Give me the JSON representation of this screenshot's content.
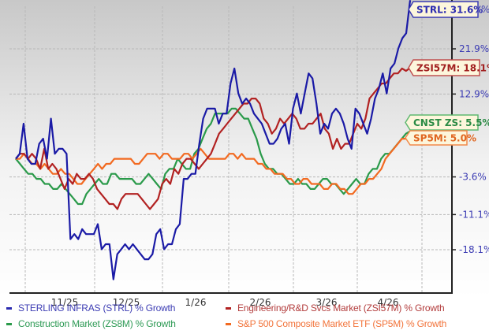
{
  "chart_data": {
    "type": "line",
    "title": "",
    "xlabel": "",
    "ylabel": "% Growth",
    "x_ticks": [
      "11/25",
      "12/25",
      "1/26",
      "2/26",
      "3/26",
      "4/26"
    ],
    "y_ticks": [
      "21.9%",
      "12.9%",
      "-3.6%",
      "-11.1%",
      "-18.1%"
    ],
    "ylim": [
      -24,
      35
    ],
    "grid": true,
    "legend_position": "bottom",
    "series": [
      {
        "name": "STERLING INFRAS (STRL) % Growth",
        "short": "STRL",
        "color": "#1a1aa6",
        "final_label": "STRL: 31.6%",
        "final_value": 31.6,
        "values": [
          0,
          1,
          7,
          0,
          -1,
          -1,
          3,
          4,
          0,
          8,
          1,
          2,
          2,
          1,
          -16,
          -15,
          -16,
          -14,
          -15,
          -15,
          -15,
          -13,
          -18,
          -17,
          -17,
          -24,
          -19,
          -18,
          -17,
          -18,
          -17,
          -18,
          -19,
          -20,
          -20,
          -19,
          -15,
          -14,
          -18,
          -17,
          -17,
          -14,
          -13,
          -4,
          -4,
          -3,
          -3,
          3,
          8,
          10,
          10,
          10,
          7,
          9,
          9,
          15,
          18,
          13,
          11,
          12,
          11,
          9,
          8,
          7,
          5,
          3,
          3,
          4,
          6,
          7,
          3,
          10,
          13,
          9,
          13,
          17,
          16,
          11,
          5,
          7,
          6,
          9,
          10,
          9,
          7,
          4,
          2,
          10,
          9,
          7,
          5,
          8,
          12,
          14,
          17,
          13,
          18,
          19,
          22,
          24,
          25,
          31.6
        ]
      },
      {
        "name": "Engineering/R&D Svcs Market (ZSI57M) % Growth",
        "short": "ZSI57M",
        "color": "#b22222",
        "final_label": "ZSI57M: 18.1%",
        "final_value": 18.1,
        "values": [
          0,
          1,
          1,
          0,
          1,
          0,
          -2,
          2,
          -2,
          -1,
          -2,
          -4,
          -6,
          -4,
          -5,
          -3,
          -4,
          -4,
          -3,
          -4,
          -6,
          -7,
          -8,
          -9,
          -9,
          -10,
          -8,
          -7,
          -7,
          -7,
          -7,
          -8,
          -9,
          -10,
          -9,
          -8,
          -5,
          -4,
          -5,
          -2,
          -3,
          -1,
          0,
          0,
          -1,
          -2,
          -1,
          0,
          1,
          3,
          5,
          6,
          7,
          8,
          9,
          10,
          11,
          11,
          12,
          12,
          11,
          8,
          7,
          5,
          6,
          8,
          7,
          8,
          9,
          8,
          6,
          6,
          7,
          7,
          8,
          9,
          6,
          5,
          2,
          4,
          2,
          3,
          3,
          5,
          7,
          6,
          8,
          12,
          13,
          14,
          15,
          15,
          16,
          17,
          17,
          18,
          17.5,
          18.1
        ]
      },
      {
        "name": "Construction Market (ZS8M) % Growth",
        "short": "ZS8M",
        "color": "#2a9a4a",
        "final_label": "CNST ZS: 5.5%",
        "final_value": 5.5,
        "values": [
          0,
          -1,
          -2,
          -3,
          -3,
          -4,
          -4,
          -5,
          -5,
          -6,
          -6,
          -5,
          -6,
          -7,
          -8,
          -9,
          -9,
          -7,
          -6,
          -5,
          -4,
          -5,
          -5,
          -3,
          -3,
          -4,
          -4,
          -4,
          -4,
          -5,
          -5,
          -4,
          -3,
          -4,
          -5,
          -6,
          -3,
          -2,
          -2,
          0,
          -1,
          -2,
          -2,
          1,
          2,
          4,
          6,
          7,
          9,
          9,
          9,
          9,
          10,
          10,
          9,
          8,
          8,
          6,
          4,
          1,
          -1,
          -2,
          -2,
          -3,
          -3,
          -4,
          -5,
          -5,
          -4,
          -5,
          -5,
          -6,
          -6,
          -5,
          -4,
          -4,
          -5,
          -5,
          -6,
          -7,
          -6,
          -5,
          -4,
          -5,
          -5,
          -3,
          -2,
          -2,
          0,
          1,
          1,
          2,
          3,
          4,
          5,
          5.5
        ]
      },
      {
        "name": "S&P 500 Composite Market ETF (SP5M) % Growth",
        "short": "SP5M",
        "color": "#f26a21",
        "final_label": "SP5M: 5.0%",
        "final_value": 5.0,
        "values": [
          0,
          0,
          1,
          0,
          -1,
          -1,
          -2,
          -1,
          -2,
          -3,
          -3,
          -2,
          -3,
          -3,
          -4,
          -5,
          -5,
          -4,
          -3,
          -2,
          -1,
          -2,
          -1,
          -1,
          0,
          0,
          0,
          0,
          0,
          -1,
          -1,
          0,
          1,
          1,
          1,
          0,
          1,
          1,
          0,
          0,
          0,
          1,
          1,
          0,
          1,
          2,
          1,
          0,
          0,
          0,
          0,
          0,
          1,
          1,
          0,
          1,
          0,
          0,
          0,
          -1,
          -1,
          -2,
          -2,
          -3,
          -3,
          -3,
          -4,
          -4,
          -5,
          -5,
          -4,
          -4,
          -5,
          -5,
          -5,
          -6,
          -6,
          -5,
          -5,
          -6,
          -6,
          -7,
          -7,
          -6,
          -5,
          -5,
          -4,
          -4,
          -3,
          -2,
          0,
          1,
          2,
          3,
          4,
          4,
          5.0
        ]
      }
    ]
  },
  "legend": {
    "items": [
      {
        "label": "STERLING INFRAS (STRL) % Growth",
        "color": "#3b3bb3"
      },
      {
        "label": "Engineering/R&D Svcs Market (ZSI57M) % Growth",
        "color": "#b23b3b"
      },
      {
        "label": "Construction Market (ZS8M) % Growth",
        "color": "#2e9a55"
      },
      {
        "label": "S&P 500 Composite Market ETF (SP5M) % Growth",
        "color": "#f2743b"
      }
    ]
  },
  "callouts": [
    {
      "label": "STRL: 31.6%",
      "text_color": "#2b2bb0",
      "border": "#3b3bb3"
    },
    {
      "label": "ZSI57M: 18.1%",
      "text_color": "#a22020",
      "border": "#c05050"
    },
    {
      "label": "CNST ZS: 5.5%",
      "text_color": "#2a8a44",
      "border": "#5fb870"
    },
    {
      "label": "SP5M: 5.0%",
      "text_color": "#e0651f",
      "border": "#f2894a"
    }
  ],
  "axis": {
    "right_edge_label": "%"
  }
}
